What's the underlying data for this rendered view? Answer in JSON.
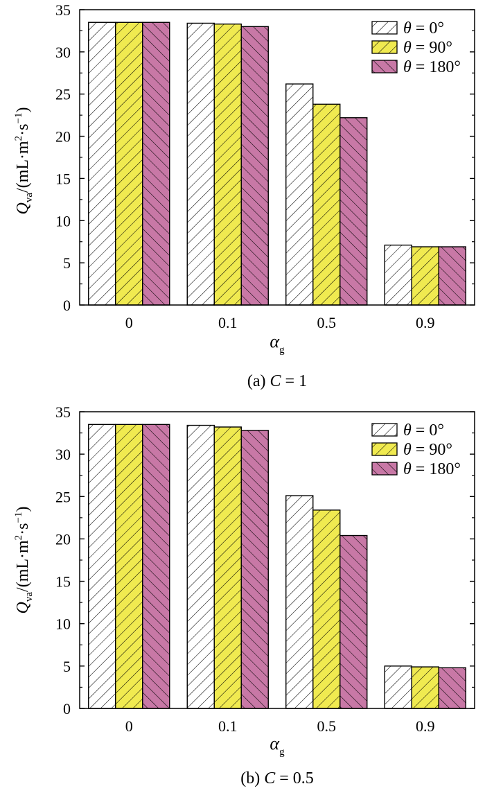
{
  "chart_data": [
    {
      "type": "bar",
      "categories": [
        "0",
        "0.1",
        "0.5",
        "0.9"
      ],
      "series": [
        {
          "name": "θ = 0°",
          "values": [
            33.5,
            33.4,
            26.2,
            7.1
          ],
          "color": "#ffffff",
          "hatch": "fwd"
        },
        {
          "name": "θ = 90°",
          "values": [
            33.5,
            33.3,
            23.8,
            6.9
          ],
          "color": "#f0ea50",
          "hatch": "fwd"
        },
        {
          "name": "θ = 180°",
          "values": [
            33.5,
            33.0,
            22.2,
            6.9
          ],
          "color": "#c878a6",
          "hatch": "back"
        }
      ],
      "ylim": [
        0,
        35
      ],
      "yticks": [
        "0",
        "5",
        "10",
        "15",
        "20",
        "25",
        "30",
        "35"
      ],
      "ylabel": {
        "main": "Q",
        "sub": "va",
        "unit": "/(mL·m",
        "sup1": "2",
        "mid": "·s",
        "sup2": "−1",
        "end": ")"
      },
      "xlabel": {
        "main": "α",
        "sub": "g"
      },
      "caption": {
        "prefix": "(a) ",
        "var": "C",
        "eq": " = 1"
      },
      "legend": [
        {
          "sym": "θ",
          "rest": " = 0°"
        },
        {
          "sym": "θ",
          "rest": " = 90°"
        },
        {
          "sym": "θ",
          "rest": " = 180°"
        }
      ]
    },
    {
      "type": "bar",
      "categories": [
        "0",
        "0.1",
        "0.5",
        "0.9"
      ],
      "series": [
        {
          "name": "θ = 0°",
          "values": [
            33.5,
            33.4,
            25.1,
            5.0
          ],
          "color": "#ffffff",
          "hatch": "fwd"
        },
        {
          "name": "θ = 90°",
          "values": [
            33.5,
            33.2,
            23.4,
            4.9
          ],
          "color": "#f0ea50",
          "hatch": "fwd"
        },
        {
          "name": "θ = 180°",
          "values": [
            33.5,
            32.8,
            20.4,
            4.8
          ],
          "color": "#c878a6",
          "hatch": "back"
        }
      ],
      "ylim": [
        0,
        35
      ],
      "yticks": [
        "0",
        "5",
        "10",
        "15",
        "20",
        "25",
        "30",
        "35"
      ],
      "ylabel": {
        "main": "Q",
        "sub": "va",
        "unit": "/(mL·m",
        "sup1": "2",
        "mid": "·s",
        "sup2": "−1",
        "end": ")"
      },
      "xlabel": {
        "main": "α",
        "sub": "g"
      },
      "caption": {
        "prefix": "(b) ",
        "var": "C",
        "eq": " = 0.5"
      },
      "legend": [
        {
          "sym": "θ",
          "rest": " = 0°"
        },
        {
          "sym": "θ",
          "rest": " = 90°"
        },
        {
          "sym": "θ",
          "rest": " = 180°"
        }
      ]
    }
  ]
}
